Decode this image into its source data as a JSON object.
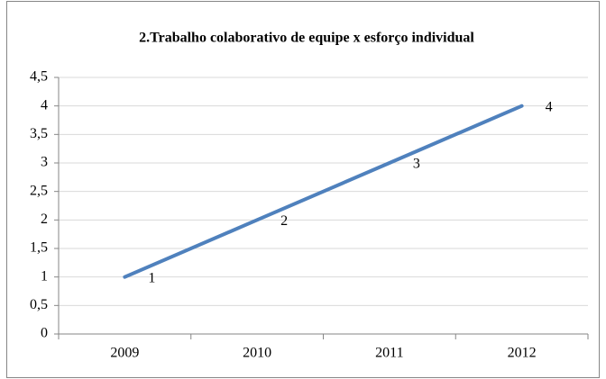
{
  "chart_data": {
    "type": "line",
    "title": "2.Trabalho colaborativo de equipe x esforço individual",
    "categories": [
      "2009",
      "2010",
      "2011",
      "2012"
    ],
    "series": [
      {
        "name": "Series1",
        "color": "#4f81bd",
        "values": [
          1,
          2,
          3,
          4
        ]
      }
    ],
    "ylim": [
      0,
      4.5
    ],
    "yticks": [
      0,
      {
        "value": 0.5,
        "label": "0,5"
      },
      1,
      {
        "value": 1.5,
        "label": "1,5"
      },
      2,
      {
        "value": 2.5,
        "label": "2,5"
      },
      3,
      {
        "value": 3.5,
        "label": "3,5"
      },
      4,
      {
        "value": 4.5,
        "label": "4,5"
      }
    ],
    "grid": true
  }
}
